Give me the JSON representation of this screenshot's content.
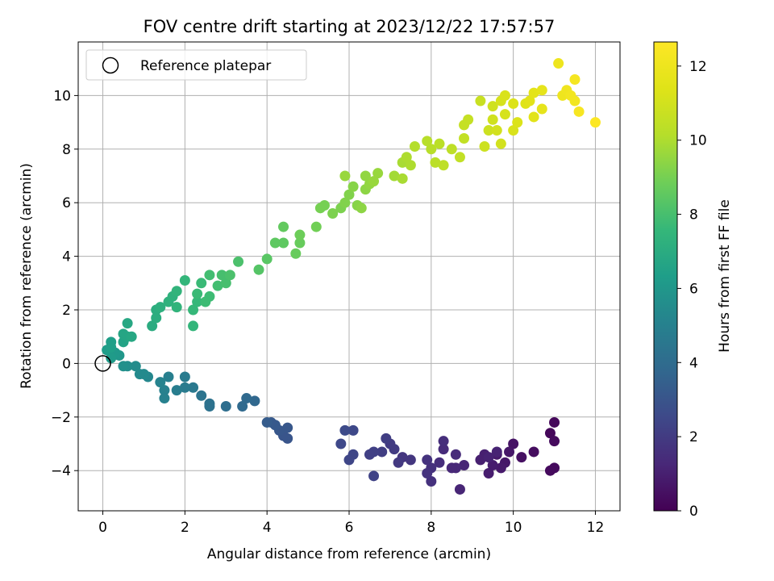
{
  "chart_data": {
    "type": "scatter",
    "title": "FOV centre drift starting at 2023/12/22 17:57:57",
    "xlabel": "Angular distance from reference (arcmin)",
    "ylabel": "Rotation from reference (arcmin)",
    "xlim": [
      -0.6,
      12.6
    ],
    "ylim": [
      -5.5,
      12.0
    ],
    "xticks": [
      0,
      2,
      4,
      6,
      8,
      10,
      12
    ],
    "yticks": [
      -4,
      -2,
      0,
      2,
      4,
      6,
      8,
      10
    ],
    "grid": true,
    "legend": {
      "position": "top-left",
      "entries": [
        "Reference platepar"
      ]
    },
    "reference_point": {
      "x": 0,
      "y": 0
    },
    "colorbar": {
      "label": "Hours from first FF file",
      "range": [
        0,
        12.65
      ],
      "ticks": [
        0,
        2,
        4,
        6,
        8,
        10,
        12
      ],
      "colormap": "viridis"
    },
    "points": [
      {
        "x": 11.0,
        "y": -2.2,
        "h": 0.2
      },
      {
        "x": 10.9,
        "y": -2.6,
        "h": 0.2
      },
      {
        "x": 11.0,
        "y": -2.9,
        "h": 0.3
      },
      {
        "x": 11.0,
        "y": -3.9,
        "h": 0.3
      },
      {
        "x": 10.9,
        "y": -4.0,
        "h": 0.3
      },
      {
        "x": 10.5,
        "y": -3.3,
        "h": 0.4
      },
      {
        "x": 10.2,
        "y": -3.5,
        "h": 0.5
      },
      {
        "x": 10.0,
        "y": -3.0,
        "h": 0.6
      },
      {
        "x": 9.9,
        "y": -3.3,
        "h": 0.7
      },
      {
        "x": 9.8,
        "y": -3.7,
        "h": 0.7
      },
      {
        "x": 9.7,
        "y": -3.9,
        "h": 0.8
      },
      {
        "x": 9.6,
        "y": -3.4,
        "h": 0.8
      },
      {
        "x": 9.5,
        "y": -3.8,
        "h": 0.9
      },
      {
        "x": 9.4,
        "y": -4.1,
        "h": 0.9
      },
      {
        "x": 9.3,
        "y": -3.4,
        "h": 1.0
      },
      {
        "x": 9.2,
        "y": -3.6,
        "h": 1.0
      },
      {
        "x": 9.4,
        "y": -3.5,
        "h": 1.1
      },
      {
        "x": 9.6,
        "y": -3.3,
        "h": 1.1
      },
      {
        "x": 8.7,
        "y": -4.7,
        "h": 1.2
      },
      {
        "x": 8.8,
        "y": -3.8,
        "h": 1.2
      },
      {
        "x": 8.6,
        "y": -3.9,
        "h": 1.3
      },
      {
        "x": 8.5,
        "y": -3.9,
        "h": 1.3
      },
      {
        "x": 8.6,
        "y": -3.4,
        "h": 1.4
      },
      {
        "x": 8.3,
        "y": -3.2,
        "h": 1.4
      },
      {
        "x": 8.3,
        "y": -2.9,
        "h": 1.5
      },
      {
        "x": 8.2,
        "y": -3.7,
        "h": 1.5
      },
      {
        "x": 8.0,
        "y": -3.9,
        "h": 1.6
      },
      {
        "x": 8.0,
        "y": -4.4,
        "h": 1.6
      },
      {
        "x": 7.9,
        "y": -4.1,
        "h": 1.7
      },
      {
        "x": 7.9,
        "y": -3.6,
        "h": 1.7
      },
      {
        "x": 7.5,
        "y": -3.6,
        "h": 1.8
      },
      {
        "x": 7.3,
        "y": -3.5,
        "h": 1.8
      },
      {
        "x": 7.2,
        "y": -3.7,
        "h": 1.9
      },
      {
        "x": 7.1,
        "y": -3.2,
        "h": 2.0
      },
      {
        "x": 7.0,
        "y": -3.0,
        "h": 2.0
      },
      {
        "x": 6.9,
        "y": -2.8,
        "h": 2.1
      },
      {
        "x": 6.8,
        "y": -3.3,
        "h": 2.1
      },
      {
        "x": 6.6,
        "y": -3.3,
        "h": 2.2
      },
      {
        "x": 6.5,
        "y": -3.4,
        "h": 2.2
      },
      {
        "x": 6.6,
        "y": -4.2,
        "h": 2.3
      },
      {
        "x": 6.1,
        "y": -3.4,
        "h": 2.4
      },
      {
        "x": 6.0,
        "y": -3.6,
        "h": 2.4
      },
      {
        "x": 5.8,
        "y": -3.0,
        "h": 2.5
      },
      {
        "x": 6.1,
        "y": -2.5,
        "h": 2.5
      },
      {
        "x": 5.9,
        "y": -2.5,
        "h": 2.6
      },
      {
        "x": 4.5,
        "y": -2.8,
        "h": 3.0
      },
      {
        "x": 4.4,
        "y": -2.7,
        "h": 3.0
      },
      {
        "x": 4.5,
        "y": -2.4,
        "h": 3.1
      },
      {
        "x": 4.3,
        "y": -2.5,
        "h": 3.1
      },
      {
        "x": 4.2,
        "y": -2.3,
        "h": 3.2
      },
      {
        "x": 4.1,
        "y": -2.2,
        "h": 3.2
      },
      {
        "x": 4.0,
        "y": -2.2,
        "h": 3.3
      },
      {
        "x": 3.7,
        "y": -1.4,
        "h": 3.8
      },
      {
        "x": 3.5,
        "y": -1.3,
        "h": 3.9
      },
      {
        "x": 3.4,
        "y": -1.6,
        "h": 3.9
      },
      {
        "x": 3.0,
        "y": -1.6,
        "h": 4.1
      },
      {
        "x": 2.6,
        "y": -1.5,
        "h": 4.3
      },
      {
        "x": 2.6,
        "y": -1.6,
        "h": 4.3
      },
      {
        "x": 2.4,
        "y": -1.2,
        "h": 4.4
      },
      {
        "x": 2.2,
        "y": -0.9,
        "h": 4.6
      },
      {
        "x": 2.0,
        "y": -0.5,
        "h": 4.7
      },
      {
        "x": 2.0,
        "y": -0.9,
        "h": 4.7
      },
      {
        "x": 1.8,
        "y": -1.0,
        "h": 4.8
      },
      {
        "x": 1.6,
        "y": -0.5,
        "h": 4.9
      },
      {
        "x": 1.5,
        "y": -1.0,
        "h": 5.0
      },
      {
        "x": 1.5,
        "y": -1.3,
        "h": 5.0
      },
      {
        "x": 1.4,
        "y": -0.7,
        "h": 5.1
      },
      {
        "x": 1.1,
        "y": -0.5,
        "h": 5.3
      },
      {
        "x": 1.0,
        "y": -0.4,
        "h": 5.4
      },
      {
        "x": 0.9,
        "y": -0.4,
        "h": 5.4
      },
      {
        "x": 0.8,
        "y": -0.1,
        "h": 5.5
      },
      {
        "x": 0.6,
        "y": -0.1,
        "h": 5.6
      },
      {
        "x": 0.5,
        "y": -0.1,
        "h": 5.7
      },
      {
        "x": 0.4,
        "y": 0.3,
        "h": 6.0
      },
      {
        "x": 0.3,
        "y": 0.4,
        "h": 6.1
      },
      {
        "x": 0.2,
        "y": 0.2,
        "h": 6.2
      },
      {
        "x": 0.1,
        "y": 0.5,
        "h": 6.3
      },
      {
        "x": 0.2,
        "y": 0.6,
        "h": 6.4
      },
      {
        "x": 0.2,
        "y": 0.8,
        "h": 6.4
      },
      {
        "x": 0.5,
        "y": 0.8,
        "h": 6.6
      },
      {
        "x": 0.5,
        "y": 1.1,
        "h": 6.7
      },
      {
        "x": 0.6,
        "y": 1.0,
        "h": 6.7
      },
      {
        "x": 0.6,
        "y": 1.5,
        "h": 6.8
      },
      {
        "x": 0.7,
        "y": 1.0,
        "h": 6.8
      },
      {
        "x": 1.2,
        "y": 1.4,
        "h": 7.0
      },
      {
        "x": 1.3,
        "y": 1.7,
        "h": 7.1
      },
      {
        "x": 1.3,
        "y": 2.0,
        "h": 7.1
      },
      {
        "x": 1.4,
        "y": 2.1,
        "h": 7.2
      },
      {
        "x": 1.6,
        "y": 2.3,
        "h": 7.3
      },
      {
        "x": 1.7,
        "y": 2.5,
        "h": 7.3
      },
      {
        "x": 1.8,
        "y": 2.1,
        "h": 7.4
      },
      {
        "x": 1.8,
        "y": 2.7,
        "h": 7.4
      },
      {
        "x": 2.0,
        "y": 3.1,
        "h": 7.5
      },
      {
        "x": 2.2,
        "y": 1.4,
        "h": 7.5
      },
      {
        "x": 2.2,
        "y": 2.0,
        "h": 7.6
      },
      {
        "x": 2.3,
        "y": 2.3,
        "h": 7.6
      },
      {
        "x": 2.3,
        "y": 2.6,
        "h": 7.7
      },
      {
        "x": 2.4,
        "y": 3.0,
        "h": 7.7
      },
      {
        "x": 2.5,
        "y": 2.3,
        "h": 7.8
      },
      {
        "x": 2.6,
        "y": 2.5,
        "h": 7.8
      },
      {
        "x": 2.6,
        "y": 3.3,
        "h": 7.9
      },
      {
        "x": 2.8,
        "y": 2.9,
        "h": 7.9
      },
      {
        "x": 2.9,
        "y": 3.3,
        "h": 8.0
      },
      {
        "x": 3.0,
        "y": 3.0,
        "h": 8.0
      },
      {
        "x": 3.1,
        "y": 3.3,
        "h": 8.1
      },
      {
        "x": 3.3,
        "y": 3.8,
        "h": 8.1
      },
      {
        "x": 3.8,
        "y": 3.5,
        "h": 8.3
      },
      {
        "x": 4.0,
        "y": 3.9,
        "h": 8.4
      },
      {
        "x": 4.2,
        "y": 4.5,
        "h": 8.5
      },
      {
        "x": 4.4,
        "y": 4.5,
        "h": 8.5
      },
      {
        "x": 4.4,
        "y": 5.1,
        "h": 8.6
      },
      {
        "x": 4.7,
        "y": 4.1,
        "h": 8.7
      },
      {
        "x": 4.8,
        "y": 4.5,
        "h": 8.7
      },
      {
        "x": 4.8,
        "y": 4.8,
        "h": 8.8
      },
      {
        "x": 5.2,
        "y": 5.1,
        "h": 8.9
      },
      {
        "x": 5.3,
        "y": 5.8,
        "h": 9.0
      },
      {
        "x": 5.4,
        "y": 5.9,
        "h": 9.0
      },
      {
        "x": 5.6,
        "y": 5.6,
        "h": 9.1
      },
      {
        "x": 5.8,
        "y": 5.8,
        "h": 9.1
      },
      {
        "x": 5.9,
        "y": 6.0,
        "h": 9.2
      },
      {
        "x": 6.0,
        "y": 6.3,
        "h": 9.2
      },
      {
        "x": 6.1,
        "y": 6.6,
        "h": 9.3
      },
      {
        "x": 6.2,
        "y": 5.9,
        "h": 9.3
      },
      {
        "x": 6.3,
        "y": 5.8,
        "h": 9.4
      },
      {
        "x": 6.4,
        "y": 6.5,
        "h": 9.4
      },
      {
        "x": 6.4,
        "y": 7.0,
        "h": 9.5
      },
      {
        "x": 6.5,
        "y": 6.7,
        "h": 9.5
      },
      {
        "x": 6.6,
        "y": 6.8,
        "h": 9.6
      },
      {
        "x": 6.7,
        "y": 7.1,
        "h": 9.6
      },
      {
        "x": 5.9,
        "y": 7.0,
        "h": 9.6
      },
      {
        "x": 7.1,
        "y": 7.0,
        "h": 9.8
      },
      {
        "x": 7.3,
        "y": 6.9,
        "h": 9.9
      },
      {
        "x": 7.3,
        "y": 7.5,
        "h": 9.9
      },
      {
        "x": 7.4,
        "y": 7.7,
        "h": 10.0
      },
      {
        "x": 7.5,
        "y": 7.4,
        "h": 10.0
      },
      {
        "x": 7.6,
        "y": 8.1,
        "h": 10.1
      },
      {
        "x": 7.9,
        "y": 8.3,
        "h": 10.2
      },
      {
        "x": 8.0,
        "y": 8.0,
        "h": 10.2
      },
      {
        "x": 8.1,
        "y": 7.5,
        "h": 10.3
      },
      {
        "x": 8.2,
        "y": 8.2,
        "h": 10.3
      },
      {
        "x": 8.3,
        "y": 7.4,
        "h": 10.4
      },
      {
        "x": 8.5,
        "y": 8.0,
        "h": 10.4
      },
      {
        "x": 8.7,
        "y": 7.7,
        "h": 10.5
      },
      {
        "x": 8.8,
        "y": 8.4,
        "h": 10.5
      },
      {
        "x": 8.8,
        "y": 8.9,
        "h": 10.6
      },
      {
        "x": 8.9,
        "y": 9.1,
        "h": 10.6
      },
      {
        "x": 9.2,
        "y": 9.8,
        "h": 10.7
      },
      {
        "x": 9.3,
        "y": 8.1,
        "h": 10.8
      },
      {
        "x": 9.4,
        "y": 8.7,
        "h": 10.8
      },
      {
        "x": 9.5,
        "y": 9.1,
        "h": 10.9
      },
      {
        "x": 9.5,
        "y": 9.6,
        "h": 10.9
      },
      {
        "x": 9.6,
        "y": 8.7,
        "h": 11.0
      },
      {
        "x": 9.7,
        "y": 8.2,
        "h": 11.0
      },
      {
        "x": 9.7,
        "y": 9.8,
        "h": 11.1
      },
      {
        "x": 9.8,
        "y": 9.3,
        "h": 11.1
      },
      {
        "x": 9.8,
        "y": 10.0,
        "h": 11.2
      },
      {
        "x": 10.0,
        "y": 8.7,
        "h": 11.2
      },
      {
        "x": 10.0,
        "y": 9.7,
        "h": 11.3
      },
      {
        "x": 10.1,
        "y": 9.0,
        "h": 11.3
      },
      {
        "x": 10.3,
        "y": 9.7,
        "h": 11.4
      },
      {
        "x": 10.4,
        "y": 9.8,
        "h": 11.5
      },
      {
        "x": 10.5,
        "y": 9.2,
        "h": 11.5
      },
      {
        "x": 10.5,
        "y": 10.1,
        "h": 11.6
      },
      {
        "x": 10.7,
        "y": 9.5,
        "h": 11.7
      },
      {
        "x": 10.7,
        "y": 10.2,
        "h": 11.7
      },
      {
        "x": 11.1,
        "y": 11.2,
        "h": 12.0
      },
      {
        "x": 11.2,
        "y": 10.0,
        "h": 12.0
      },
      {
        "x": 11.3,
        "y": 10.2,
        "h": 12.1
      },
      {
        "x": 11.4,
        "y": 10.0,
        "h": 12.2
      },
      {
        "x": 11.5,
        "y": 9.8,
        "h": 12.2
      },
      {
        "x": 11.5,
        "y": 10.6,
        "h": 12.3
      },
      {
        "x": 11.6,
        "y": 9.4,
        "h": 12.4
      },
      {
        "x": 12.0,
        "y": 9.0,
        "h": 12.6
      }
    ]
  }
}
